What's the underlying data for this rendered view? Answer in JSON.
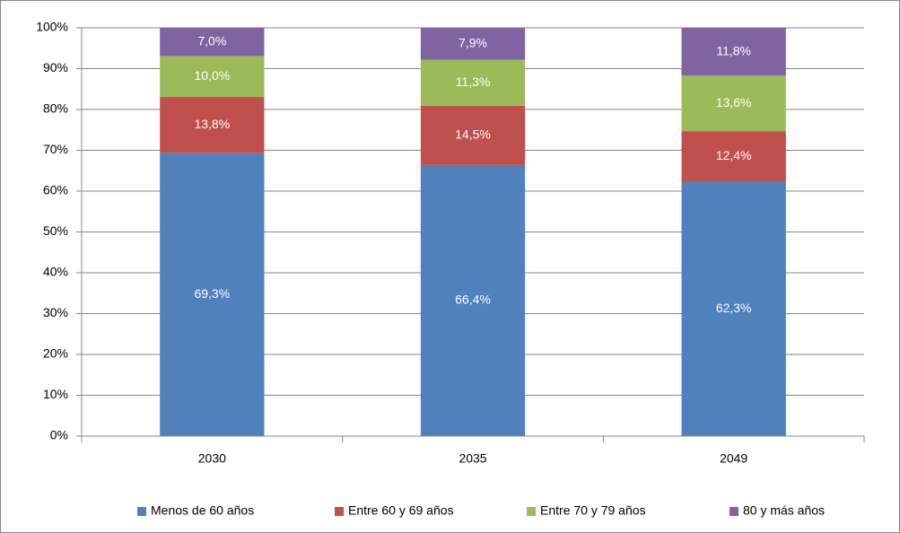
{
  "chart_data": {
    "type": "stacked_bar",
    "categories": [
      "2030",
      "2035",
      "2049"
    ],
    "series": [
      {
        "name": "Menos de 60 años",
        "color": "#4f81bd",
        "values": [
          69.3,
          66.4,
          62.3
        ],
        "value_labels": [
          "69,3%",
          "66,4%",
          "62,3%"
        ]
      },
      {
        "name": "Entre 60 y 69 años",
        "color": "#c0504d",
        "values": [
          13.8,
          14.5,
          12.4
        ],
        "value_labels": [
          "13,8%",
          "14,5%",
          "12,4%"
        ]
      },
      {
        "name": "Entre 70 y 79 años",
        "color": "#9bbb59",
        "values": [
          10.0,
          11.3,
          13.6
        ],
        "value_labels": [
          "10,0%",
          "11,3%",
          "13,6%"
        ]
      },
      {
        "name": "80 y más años",
        "color": "#8064a2",
        "values": [
          7.0,
          7.9,
          11.8
        ],
        "value_labels": [
          "7,0%",
          "7,9%",
          "11,8%"
        ]
      }
    ],
    "ylim": [
      0,
      100
    ],
    "yticks": [
      {
        "value": 0,
        "label": "0%"
      },
      {
        "value": 10,
        "label": "10%"
      },
      {
        "value": 20,
        "label": "20%"
      },
      {
        "value": 30,
        "label": "30%"
      },
      {
        "value": 40,
        "label": "40%"
      },
      {
        "value": 50,
        "label": "50%"
      },
      {
        "value": 60,
        "label": "60%"
      },
      {
        "value": 70,
        "label": "70%"
      },
      {
        "value": 80,
        "label": "80%"
      },
      {
        "value": 90,
        "label": "90%"
      },
      {
        "value": 100,
        "label": "100%"
      }
    ],
    "grid": true,
    "legend": "bottom"
  }
}
